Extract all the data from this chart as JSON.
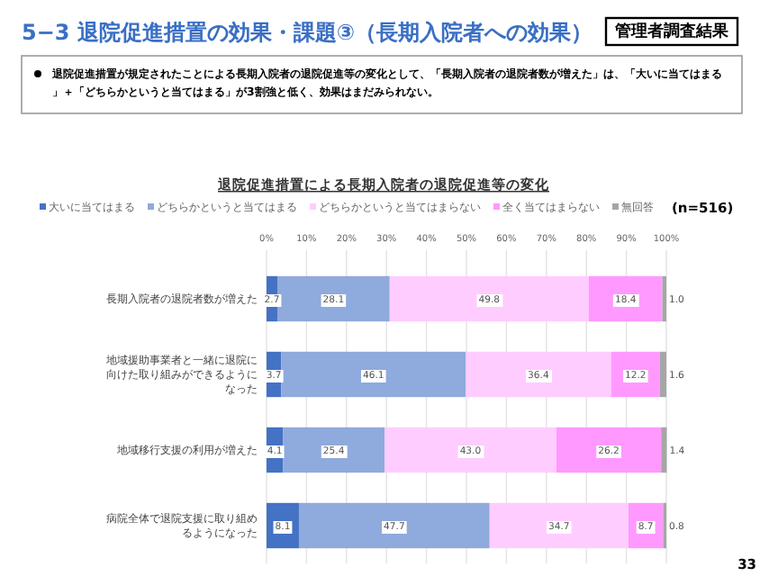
{
  "chart_data": {
    "type": "bar",
    "orientation": "horizontal",
    "stacked": true,
    "title": "5−3 退院促進措置の効果・課題③（長期入院者への効果）",
    "subtitle": "退院促進措置による長期入院者の退院促進等の変化",
    "annotations": [
      "管理者調査結果",
      "退院促進措置が規定されたことによる長期入院者の退院促進等の変化として、「長期入院者の退院者数が増えた」は、「大いに当てはまる」＋「どちらかというと当てはまる」が3割強と低く、効果はまだみられない。",
      "(n=516)",
      "33"
    ],
    "categories": [
      "長期入院者の退院者数が増えた",
      "地域援助事業者と一緒に退院に向けた取り組みができるようになった",
      "地域移行支援の利用が増えた",
      "病院全体で退院支援に取り組めるようになった"
    ],
    "series": [
      {
        "name": "大いに当てはまる",
        "color": "#4472c4",
        "values": [
          2.7,
          3.7,
          4.1,
          8.1
        ],
        "value_labels": [
          "2.7",
          "3.7",
          "4.1",
          "8.1"
        ]
      },
      {
        "name": "どちらかというと当てはまる",
        "color": "#8faadc",
        "values": [
          28.1,
          46.1,
          25.4,
          47.7
        ],
        "value_labels": [
          "28.1",
          "46.1",
          "25.4",
          "47.7"
        ]
      },
      {
        "name": "どちらかというと当てはまらない",
        "color": "#ffccff",
        "values": [
          49.8,
          36.4,
          43.0,
          34.7
        ],
        "value_labels": [
          "49.8",
          "36.4",
          "43.0",
          "34.7"
        ]
      },
      {
        "name": "全く当てはまらない",
        "color": "#ff99ff",
        "values": [
          18.4,
          12.2,
          26.2,
          8.7
        ],
        "value_labels": [
          "18.4",
          "12.2",
          "26.2",
          "8.7"
        ]
      },
      {
        "name": "無回答",
        "color": "#a6a6a6",
        "values": [
          1.0,
          1.6,
          1.4,
          0.8
        ],
        "value_labels": [
          "1.0",
          "1.6",
          "1.4",
          "0.8"
        ]
      }
    ],
    "xlim": [
      0,
      100
    ],
    "xticks": [
      {
        "value": 0,
        "label": "0%"
      },
      {
        "value": 10,
        "label": "10%"
      },
      {
        "value": 20,
        "label": "20%"
      },
      {
        "value": 30,
        "label": "30%"
      },
      {
        "value": 40,
        "label": "40%"
      },
      {
        "value": 50,
        "label": "50%"
      },
      {
        "value": 60,
        "label": "60%"
      },
      {
        "value": 70,
        "label": "70%"
      },
      {
        "value": 80,
        "label": "80%"
      },
      {
        "value": 90,
        "label": "90%"
      },
      {
        "value": 100,
        "label": "100%"
      }
    ],
    "grid": "x",
    "legend": "top"
  }
}
